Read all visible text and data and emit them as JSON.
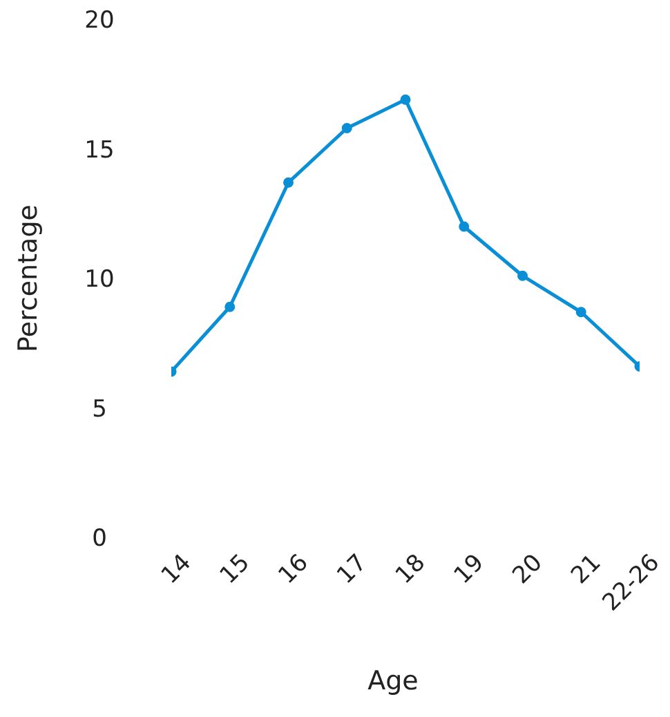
{
  "chart_data": {
    "type": "line",
    "xlabel": "Age",
    "ylabel": "Percentage",
    "categories": [
      "14",
      "15",
      "16",
      "17",
      "18",
      "19",
      "20",
      "21",
      "22-26"
    ],
    "series": [
      {
        "color": "#0a8fd6",
        "values": [
          6.4,
          8.9,
          13.7,
          15.8,
          16.9,
          12.0,
          10.1,
          8.7,
          6.6
        ]
      }
    ],
    "ylim": [
      0,
      20
    ],
    "yticks": [
      0,
      5,
      10,
      15,
      20
    ],
    "grid": false,
    "legend": false,
    "marker": "circle",
    "line_style": "solid"
  }
}
